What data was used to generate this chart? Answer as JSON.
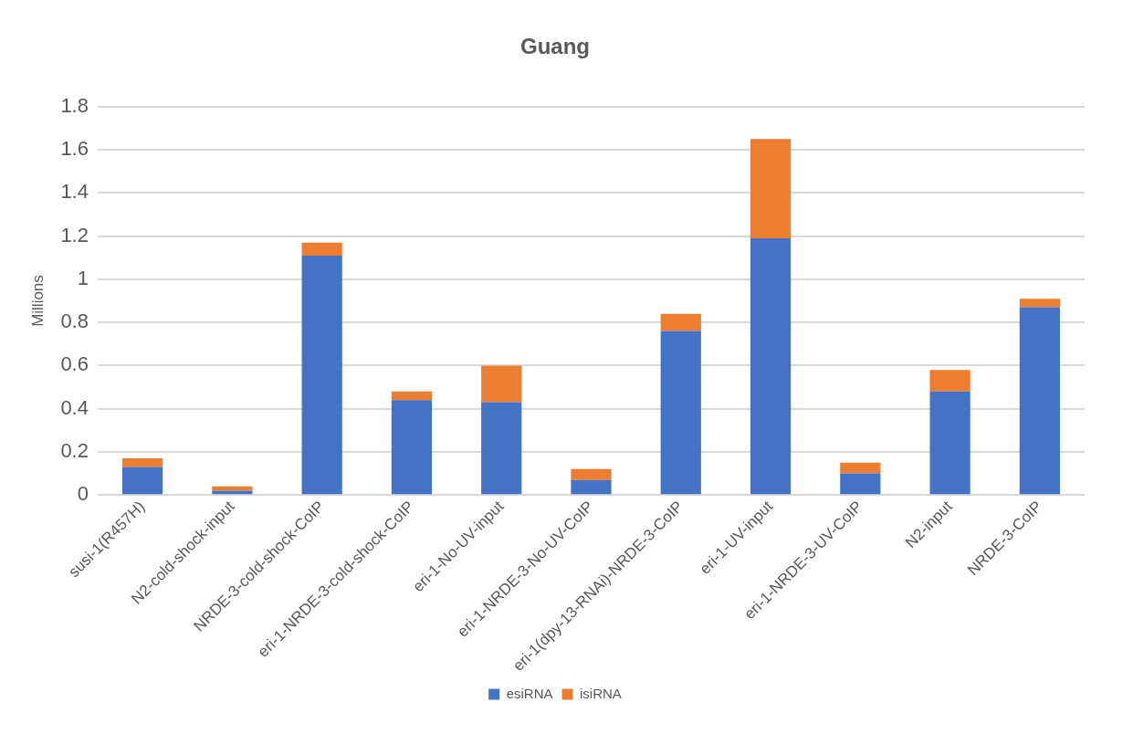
{
  "chart_data": {
    "type": "bar",
    "title": "Guang",
    "ylabel": "Millions",
    "stacked": true,
    "categories": [
      "susi-1(R457H)",
      "N2-cold-shock-input",
      "NRDE-3-cold-shock-CoIP",
      "eri-1-NRDE-3-cold-shock-CoIP",
      "eri-1-No-UV-input",
      "eri-1-NRDE-3-No-UV-CoIP",
      "eri-1(dpy-13-RNAi)-NRDE-3-CoIP",
      "eri-1-UV-input",
      "eri-1-NRDE-3-UV-CoIP",
      "N2-input",
      "NRDE-3-CoIP"
    ],
    "series": [
      {
        "name": "esiRNA",
        "color": "#4472c4",
        "values": [
          0.13,
          0.02,
          1.11,
          0.44,
          0.43,
          0.07,
          0.76,
          1.19,
          0.1,
          0.48,
          0.87
        ]
      },
      {
        "name": "isiRNA",
        "color": "#ed7d31",
        "values": [
          0.04,
          0.02,
          0.06,
          0.04,
          0.17,
          0.05,
          0.08,
          0.46,
          0.05,
          0.1,
          0.04
        ]
      }
    ],
    "ylim": [
      0,
      1.8
    ],
    "yticks": [
      0,
      0.2,
      0.4,
      0.6,
      0.8,
      1,
      1.2,
      1.4,
      1.6,
      1.8
    ],
    "grid": "y",
    "legend": "bottom"
  }
}
